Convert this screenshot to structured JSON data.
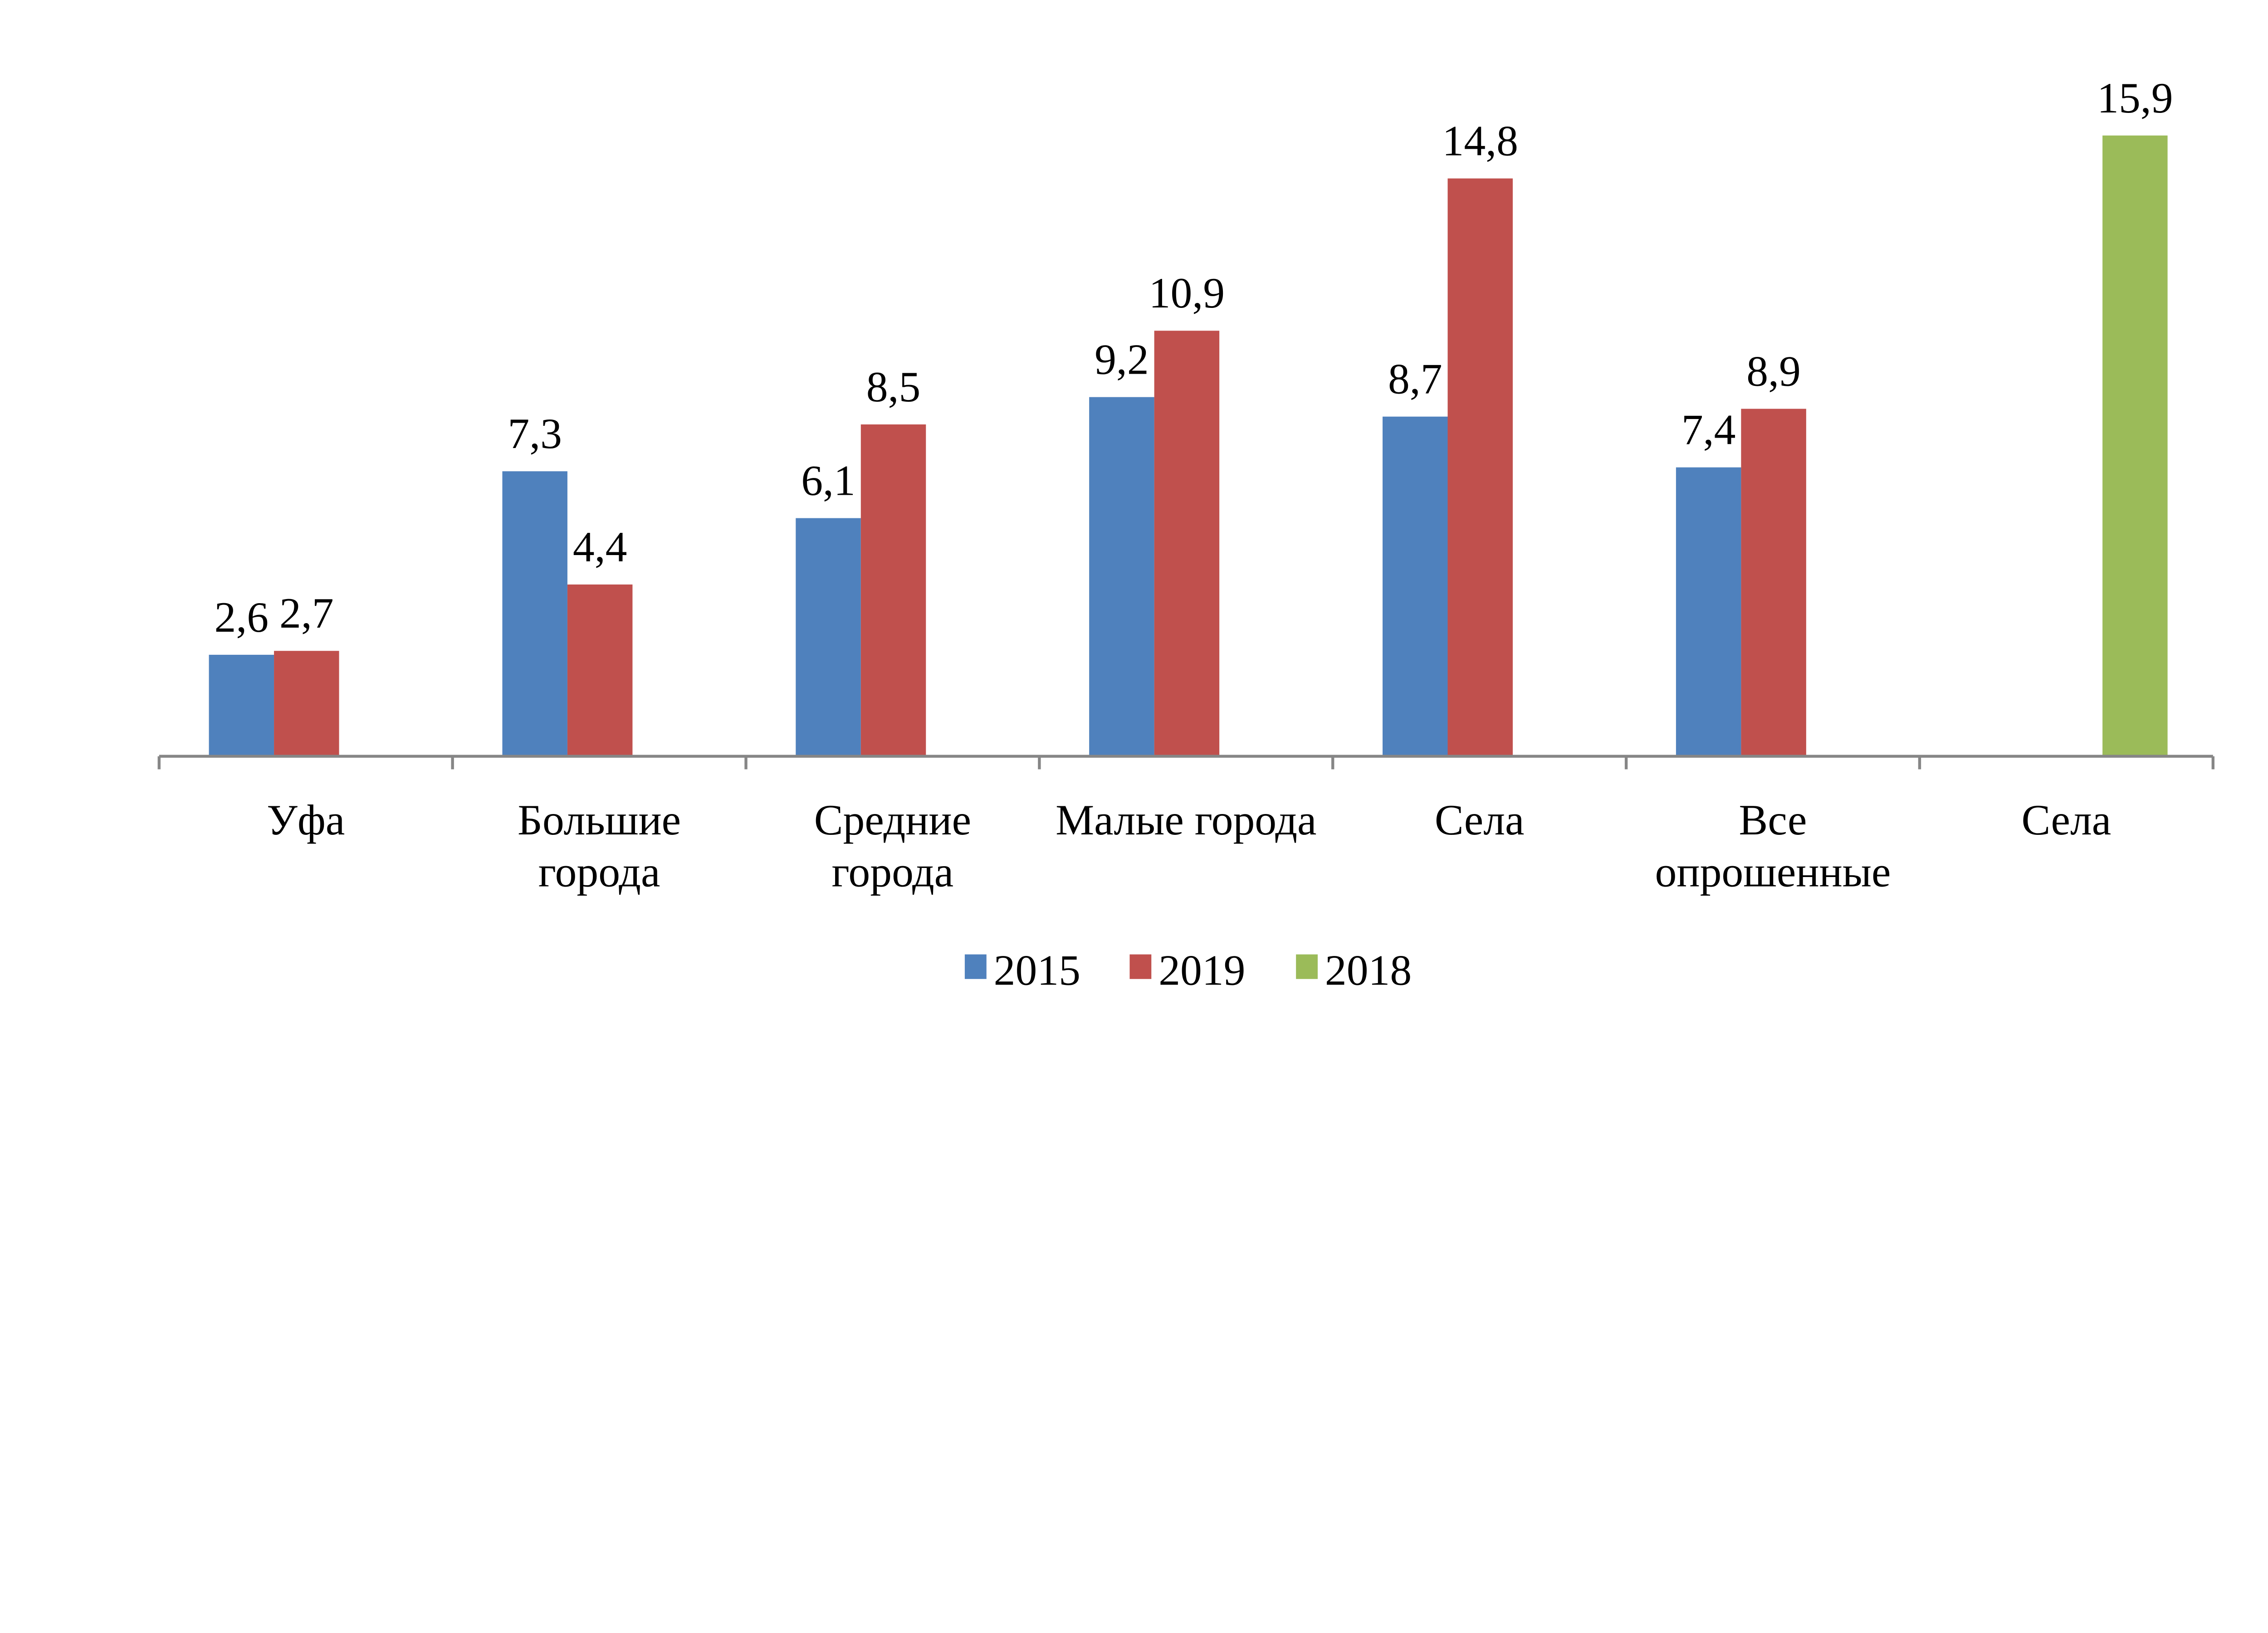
{
  "chart_data": {
    "type": "bar",
    "title": "",
    "xlabel": "",
    "ylabel": "",
    "ylim": [
      0,
      16
    ],
    "grid": false,
    "legend_position": "bottom",
    "categories": [
      [
        "Уфа"
      ],
      [
        "Большие",
        "города"
      ],
      [
        "Средние",
        "города"
      ],
      [
        "Малые города"
      ],
      [
        "Села"
      ],
      [
        "Все",
        "опрошенные"
      ],
      [
        "Села"
      ]
    ],
    "series": [
      {
        "name": "2015",
        "color": "#4F81BD",
        "values": [
          2.6,
          7.3,
          6.1,
          9.2,
          8.7,
          7.4,
          null
        ],
        "labels": [
          "2,6",
          "7,3",
          "6,1",
          "9,2",
          "8,7",
          "7,4",
          null
        ]
      },
      {
        "name": "2019",
        "color": "#C0504D",
        "values": [
          2.7,
          4.4,
          8.5,
          10.9,
          14.8,
          8.9,
          null
        ],
        "labels": [
          "2,7",
          "4,4",
          "8,5",
          "10,9",
          "14,8",
          "8,9",
          null
        ]
      },
      {
        "name": "2018",
        "color": "#9BBB59",
        "values": [
          null,
          null,
          null,
          null,
          null,
          null,
          15.9
        ],
        "labels": [
          null,
          null,
          null,
          null,
          null,
          null,
          "15,9"
        ]
      }
    ]
  }
}
